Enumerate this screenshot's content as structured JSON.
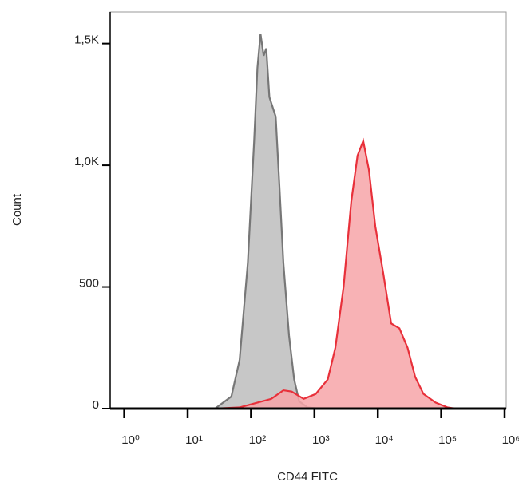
{
  "chart_data": {
    "type": "area",
    "x_label": "CD44 FITC",
    "y_label": "Count",
    "log_x": true,
    "xlim": [
      0.6,
      1000000
    ],
    "ylim": [
      0,
      1630
    ],
    "xticks": [
      {
        "value": 1,
        "label": "10⁰"
      },
      {
        "value": 10,
        "label": "10¹"
      },
      {
        "value": 100,
        "label": "10²"
      },
      {
        "value": 1000,
        "label": "10³"
      },
      {
        "value": 10000,
        "label": "10⁴"
      },
      {
        "value": 100000,
        "label": "10⁵"
      },
      {
        "value": 1000000,
        "label": "10⁶"
      }
    ],
    "yticks": [
      0,
      500,
      {
        "value": 1000,
        "label": "1,0K"
      },
      {
        "value": 1500,
        "label": "1,5K"
      }
    ],
    "series": [
      {
        "color": "#777777",
        "fill": "#bdbdbd",
        "x": [
          0.6,
          27,
          49,
          66,
          89,
          112,
          126,
          141,
          158,
          174,
          195,
          245,
          282,
          324,
          398,
          479,
          575,
          776,
          1200,
          1000000
        ],
        "values": [
          0,
          0,
          50,
          200,
          600,
          1100,
          1400,
          1540,
          1450,
          1480,
          1280,
          1200,
          900,
          600,
          300,
          120,
          30,
          5,
          0,
          0
        ]
      },
      {
        "color": "#e8303a",
        "fill": "#f7a4a8",
        "x": [
          0.6,
          27,
          66,
          209,
          324,
          437,
          676,
          1047,
          1622,
          2138,
          2884,
          3802,
          4786,
          5888,
          7244,
          9120,
          12300,
          16220,
          21880,
          29510,
          38900,
          52480,
          81280,
          125900,
          166000
        ],
        "values": [
          0,
          0,
          5,
          40,
          75,
          70,
          40,
          60,
          120,
          250,
          500,
          850,
          1040,
          1100,
          980,
          750,
          550,
          350,
          330,
          250,
          130,
          60,
          25,
          5,
          0
        ]
      }
    ]
  }
}
